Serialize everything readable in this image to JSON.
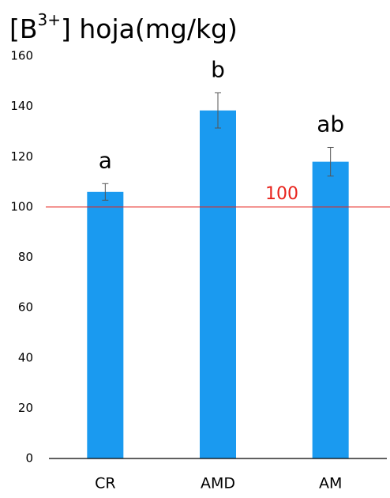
{
  "chart_data": {
    "type": "bar",
    "title": {
      "before": "[B",
      "superscript": "3+",
      "after": "] hoja(mg/kg)"
    },
    "categories": [
      "CR",
      "AMD",
      "AM"
    ],
    "values": [
      106,
      138.4,
      118
    ],
    "errors": [
      3.3,
      7,
      5.7
    ],
    "letters": [
      "a",
      "b",
      "ab"
    ],
    "color": "#1a9af0",
    "ylim": [
      0,
      160
    ],
    "yticks": [
      0,
      20,
      40,
      60,
      80,
      100,
      120,
      140,
      160
    ],
    "grid": false,
    "reference_line": {
      "value": 100,
      "color": "#e8231c"
    }
  }
}
